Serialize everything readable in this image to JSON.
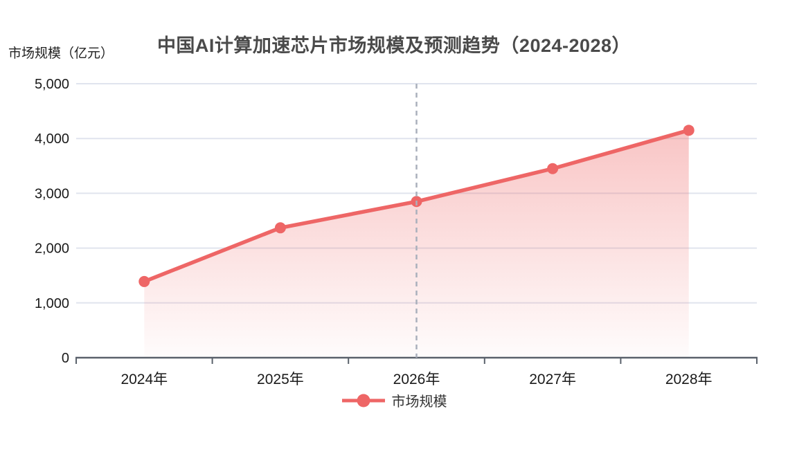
{
  "header": {
    "title": "中国AI计算加速芯片市场规模及预测趋势（2024-2028）",
    "y_axis_unit_label": "市场规模（亿元）"
  },
  "legend": {
    "items": [
      {
        "label": "市场规模",
        "color": "#ee6666"
      }
    ]
  },
  "colors": {
    "accent": "#ee6666",
    "gridline": "#e0e4ee",
    "axis_line": "#5a616b",
    "dashed_divider": "#aab0bc",
    "axis_text": "#1a1a1a",
    "title_text": "#4a4a4a"
  },
  "chart_data": {
    "type": "line",
    "title": "中国AI计算加速芯片市场规模及预测趋势（2024-2028）",
    "ylabel": "市场规模（亿元）",
    "xlabel": "",
    "categories": [
      "2024年",
      "2025年",
      "2026年",
      "2027年",
      "2028年"
    ],
    "series": [
      {
        "name": "市场规模",
        "values": [
          1390,
          2370,
          2850,
          3450,
          4150
        ],
        "color": "#ee6666",
        "area_gradient": true,
        "markers": true
      }
    ],
    "ylim": [
      0,
      5000
    ],
    "yticks": [
      0,
      1000,
      2000,
      3000,
      4000,
      5000
    ],
    "ytick_labels": [
      "0",
      "1,000",
      "2,000",
      "3,000",
      "4,000",
      "5,000"
    ],
    "grid": true,
    "legend_position": "bottom",
    "annotations": [
      {
        "type": "dashed-vertical-line",
        "at_category": "2026年",
        "color": "#aab0bc"
      }
    ]
  }
}
